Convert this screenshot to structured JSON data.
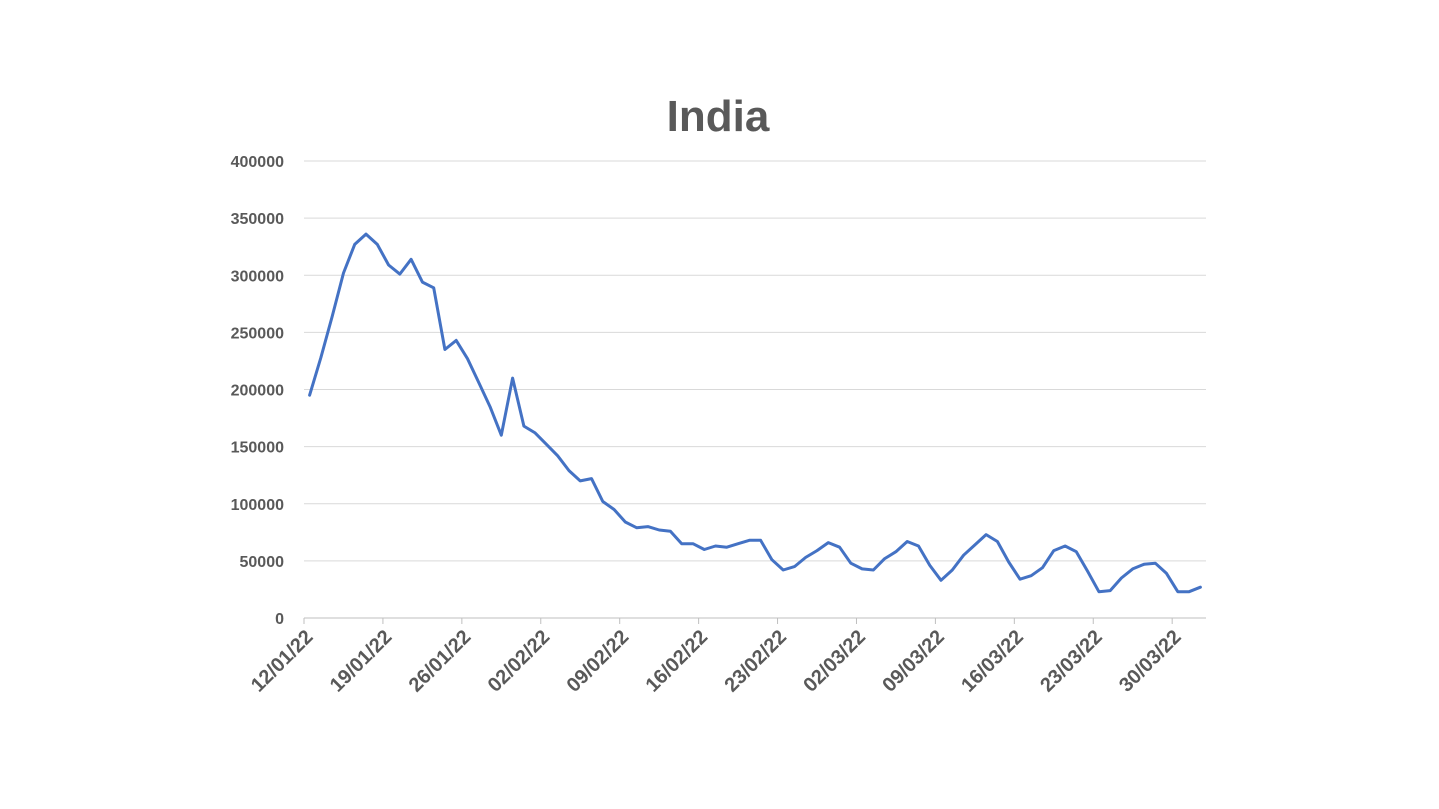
{
  "chart_data": {
    "type": "line",
    "title": "India",
    "xlabel": "",
    "ylabel": "",
    "ylim": [
      0,
      400000
    ],
    "yticks": [
      0,
      50000,
      100000,
      150000,
      200000,
      250000,
      300000,
      350000,
      400000
    ],
    "ytick_labels": [
      "0",
      "50000",
      "100000",
      "150000",
      "200000",
      "250000",
      "300000",
      "350000",
      "400000"
    ],
    "grid": true,
    "legend": "none",
    "x_tick_labels": [
      "12/01/22",
      "19/01/22",
      "26/01/22",
      "02/02/22",
      "09/02/22",
      "16/02/22",
      "23/02/22",
      "02/03/22",
      "09/03/22",
      "16/03/22",
      "23/03/22",
      "30/03/22"
    ],
    "x": [
      "12/01/22",
      "13/01/22",
      "14/01/22",
      "15/01/22",
      "16/01/22",
      "17/01/22",
      "18/01/22",
      "19/01/22",
      "20/01/22",
      "21/01/22",
      "22/01/22",
      "23/01/22",
      "24/01/22",
      "25/01/22",
      "26/01/22",
      "27/01/22",
      "28/01/22",
      "29/01/22",
      "30/01/22",
      "31/01/22",
      "01/02/22",
      "02/02/22",
      "03/02/22",
      "04/02/22",
      "05/02/22",
      "06/02/22",
      "07/02/22",
      "08/02/22",
      "09/02/22",
      "10/02/22",
      "11/02/22",
      "12/02/22",
      "13/02/22",
      "14/02/22",
      "15/02/22",
      "16/02/22",
      "17/02/22",
      "18/02/22",
      "19/02/22",
      "20/02/22",
      "21/02/22",
      "22/02/22",
      "23/02/22",
      "24/02/22",
      "25/02/22",
      "26/02/22",
      "27/02/22",
      "28/02/22",
      "01/03/22",
      "02/03/22",
      "03/03/22",
      "04/03/22",
      "05/03/22",
      "06/03/22",
      "07/03/22",
      "08/03/22",
      "09/03/22",
      "10/03/22",
      "11/03/22",
      "12/03/22",
      "13/03/22",
      "14/03/22",
      "15/03/22",
      "16/03/22",
      "17/03/22",
      "18/03/22",
      "19/03/22",
      "20/03/22",
      "21/03/22",
      "22/03/22",
      "23/03/22",
      "24/03/22",
      "25/03/22",
      "26/03/22",
      "27/03/22",
      "28/03/22",
      "29/03/22",
      "30/03/22",
      "31/03/22",
      "01/04/22"
    ],
    "series": [
      {
        "color": "#4472c4",
        "values": [
          195000,
          228000,
          264000,
          302000,
          327000,
          336000,
          327000,
          309000,
          301000,
          314000,
          294000,
          289000,
          235000,
          243000,
          227000,
          206000,
          185000,
          160000,
          210000,
          168000,
          162000,
          152000,
          142000,
          129000,
          120000,
          122000,
          102000,
          95000,
          84000,
          79000,
          80000,
          77000,
          76000,
          65000,
          65000,
          60000,
          63000,
          62000,
          65000,
          68000,
          68000,
          51000,
          42000,
          45000,
          53000,
          59000,
          66000,
          62000,
          48000,
          43000,
          42000,
          52000,
          58000,
          67000,
          63000,
          46000,
          33000,
          42000,
          55000,
          64000,
          73000,
          67000,
          49000,
          34000,
          37000,
          44000,
          59000,
          63000,
          58000,
          41000,
          23000,
          24000,
          35000,
          43000,
          47000,
          48000,
          39000,
          23000,
          23000,
          27000
        ]
      }
    ]
  }
}
